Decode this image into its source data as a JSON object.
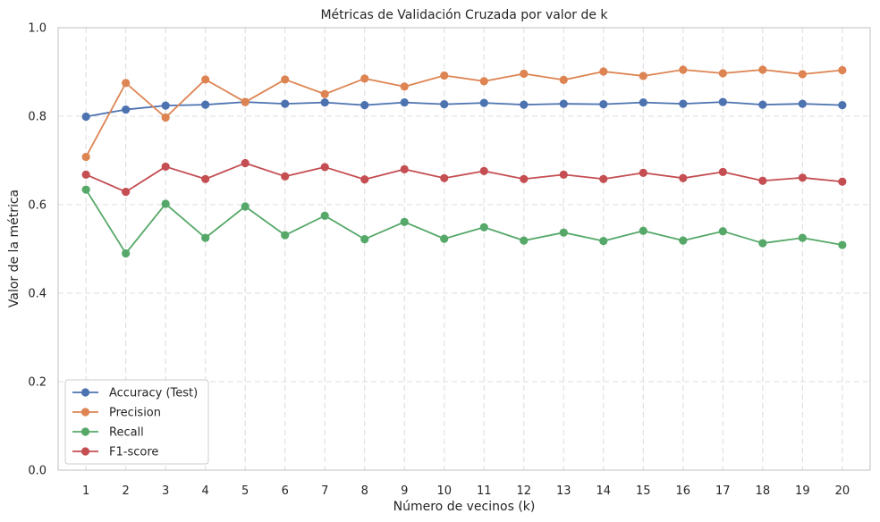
{
  "chart_data": {
    "type": "line",
    "title": "Métricas de Validación Cruzada por valor de k",
    "xlabel": "Número de vecinos (k)",
    "ylabel": "Valor de la métrica",
    "x": [
      1,
      2,
      3,
      4,
      5,
      6,
      7,
      8,
      9,
      10,
      11,
      12,
      13,
      14,
      15,
      16,
      17,
      18,
      19,
      20
    ],
    "xticks": [
      "1",
      "2",
      "3",
      "4",
      "5",
      "6",
      "7",
      "8",
      "9",
      "10",
      "11",
      "12",
      "13",
      "14",
      "15",
      "16",
      "17",
      "18",
      "19",
      "20"
    ],
    "xlim": [
      0.3,
      20.7
    ],
    "ylim": [
      0,
      1.0
    ],
    "yticks": [
      "0.0",
      "0.2",
      "0.4",
      "0.6",
      "0.8",
      "1.0"
    ],
    "grid": true,
    "legend_position": "lower-left",
    "series": [
      {
        "name": "Accuracy (Test)",
        "color": "#4c72b0",
        "values": [
          0.799,
          0.815,
          0.824,
          0.826,
          0.832,
          0.828,
          0.831,
          0.825,
          0.831,
          0.827,
          0.83,
          0.826,
          0.828,
          0.827,
          0.831,
          0.828,
          0.832,
          0.826,
          0.828,
          0.825
        ]
      },
      {
        "name": "Precision",
        "color": "#dd8452",
        "values": [
          0.708,
          0.875,
          0.797,
          0.883,
          0.832,
          0.883,
          0.85,
          0.885,
          0.867,
          0.892,
          0.879,
          0.896,
          0.882,
          0.901,
          0.891,
          0.905,
          0.897,
          0.905,
          0.895,
          0.904
        ]
      },
      {
        "name": "Recall",
        "color": "#55a868",
        "values": [
          0.634,
          0.49,
          0.602,
          0.525,
          0.596,
          0.531,
          0.575,
          0.522,
          0.561,
          0.523,
          0.549,
          0.519,
          0.537,
          0.518,
          0.541,
          0.519,
          0.54,
          0.513,
          0.525,
          0.509
        ]
      },
      {
        "name": "F1-score",
        "color": "#c44e52",
        "values": [
          0.668,
          0.629,
          0.686,
          0.658,
          0.694,
          0.664,
          0.685,
          0.657,
          0.68,
          0.66,
          0.676,
          0.658,
          0.668,
          0.658,
          0.672,
          0.66,
          0.674,
          0.654,
          0.661,
          0.652
        ]
      }
    ]
  }
}
